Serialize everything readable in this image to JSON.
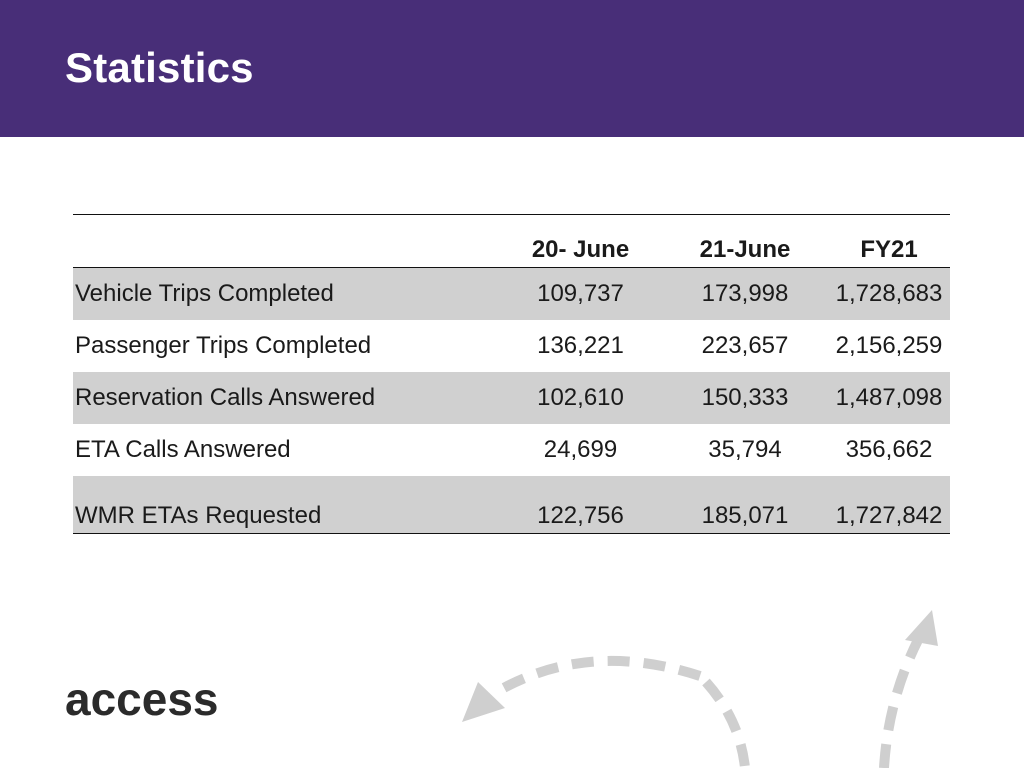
{
  "slide": {
    "title": "Statistics"
  },
  "table": {
    "columns": [
      "",
      "20- June",
      "21-June",
      "FY21"
    ],
    "rows": [
      {
        "label": "Vehicle Trips Completed",
        "june20": "109,737",
        "june21": "173,998",
        "fy21": "1,728,683"
      },
      {
        "label": "Passenger Trips Completed",
        "june20": "136,221",
        "june21": "223,657",
        "fy21": "2,156,259"
      },
      {
        "label": "Reservation Calls Answered",
        "june20": "102,610",
        "june21": "150,333",
        "fy21": "1,487,098"
      },
      {
        "label": "ETA Calls Answered",
        "june20": "24,699",
        "june21": "35,794",
        "fy21": "356,662"
      },
      {
        "label": "WMR ETAs Requested",
        "june20": "122,756",
        "june21": "185,071",
        "fy21": "1,727,842"
      }
    ]
  },
  "logo": {
    "text": "access"
  },
  "colors": {
    "header": "#482e78",
    "row_shade": "#d0d0d0",
    "arrow": "#cfcfcf"
  },
  "decoration": {
    "icon": "dashed-curved-arrows"
  }
}
